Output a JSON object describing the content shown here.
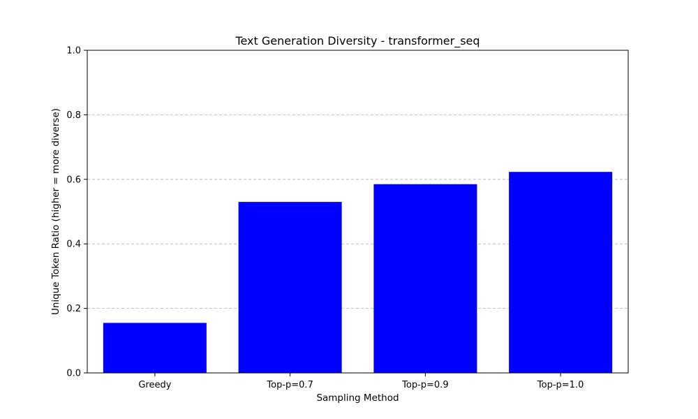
{
  "colors": {
    "bar": "#0000ff",
    "grid": "#b0b0b0",
    "axis": "#000000",
    "background": "#ffffff"
  },
  "chart_data": {
    "type": "bar",
    "title": "Text Generation Diversity - transformer_seq",
    "xlabel": "Sampling Method",
    "ylabel": "Unique Token Ratio (higher = more diverse)",
    "categories": [
      "Greedy",
      "Top-p=0.7",
      "Top-p=0.9",
      "Top-p=1.0"
    ],
    "values": [
      0.155,
      0.53,
      0.585,
      0.623
    ],
    "ylim": [
      0,
      1.0
    ],
    "yticks": [
      0.0,
      0.2,
      0.4,
      0.6,
      0.8,
      1.0
    ],
    "ytick_labels": [
      "0.0",
      "0.2",
      "0.4",
      "0.6",
      "0.8",
      "1.0"
    ],
    "grid": {
      "axis": "y",
      "style": "dashed"
    },
    "legend": "none"
  }
}
